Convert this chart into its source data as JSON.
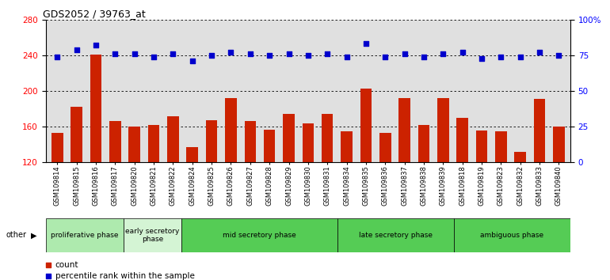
{
  "title": "GDS2052 / 39763_at",
  "categories": [
    "GSM109814",
    "GSM109815",
    "GSM109816",
    "GSM109817",
    "GSM109820",
    "GSM109821",
    "GSM109822",
    "GSM109824",
    "GSM109825",
    "GSM109826",
    "GSM109827",
    "GSM109828",
    "GSM109829",
    "GSM109830",
    "GSM109831",
    "GSM109834",
    "GSM109835",
    "GSM109836",
    "GSM109837",
    "GSM109838",
    "GSM109839",
    "GSM109818",
    "GSM109819",
    "GSM109823",
    "GSM109832",
    "GSM109833",
    "GSM109840"
  ],
  "bar_values": [
    153,
    182,
    241,
    166,
    160,
    162,
    172,
    137,
    167,
    192,
    166,
    157,
    174,
    164,
    174,
    155,
    203,
    153,
    192,
    162,
    192,
    170,
    156,
    155,
    132,
    191,
    160
  ],
  "blue_values": [
    74,
    79,
    82,
    76,
    76,
    74,
    76,
    71,
    75,
    77,
    76,
    75,
    76,
    75,
    76,
    74,
    83,
    74,
    76,
    74,
    76,
    77,
    73,
    74,
    74,
    77,
    75
  ],
  "phase_configs": [
    {
      "label": "proliferative phase",
      "start": 0,
      "end": 4,
      "color": "#aeeaae"
    },
    {
      "label": "early secretory\nphase",
      "start": 4,
      "end": 7,
      "color": "#d4f4d4"
    },
    {
      "label": "mid secretory phase",
      "start": 7,
      "end": 15,
      "color": "#55cc55"
    },
    {
      "label": "late secretory phase",
      "start": 15,
      "end": 21,
      "color": "#55cc55"
    },
    {
      "label": "ambiguous phase",
      "start": 21,
      "end": 27,
      "color": "#55cc55"
    }
  ],
  "ylim_left": [
    120,
    280
  ],
  "ylim_right": [
    0,
    100
  ],
  "yticks_left": [
    120,
    160,
    200,
    240,
    280
  ],
  "yticks_right": [
    0,
    25,
    50,
    75,
    100
  ],
  "bar_color": "#CC2200",
  "dot_color": "#0000CC",
  "background_color": "#E0E0E0",
  "gridline_color": "#000000"
}
